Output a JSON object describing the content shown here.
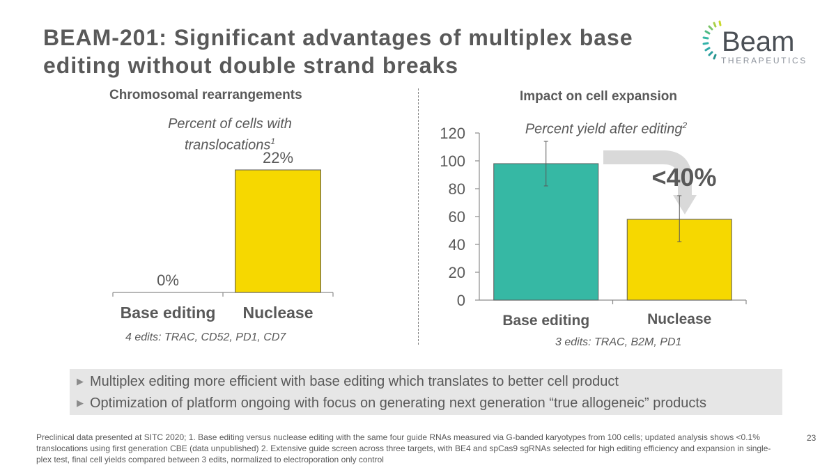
{
  "slide": {
    "title": "BEAM-201: Significant advantages of multiplex base editing without double strand breaks",
    "page_number": "23"
  },
  "logo": {
    "name": "Beam",
    "subtitle": "THERAPEUTICS"
  },
  "left_panel": {
    "section_title": "Chromosomal rearrangements",
    "subtitle": "Percent of cells with translocations",
    "subtitle_sup": "1",
    "edits_note": "4 edits: TRAC, CD52, PD1, CD7"
  },
  "right_panel": {
    "section_title": "Impact on cell expansion",
    "subtitle": "Percent yield after editing",
    "subtitle_sup": "2",
    "callout": "<40%",
    "edits_note": "3 edits: TRAC, B2M, PD1"
  },
  "chart_data": [
    {
      "type": "bar",
      "title": "Chromosomal rearrangements",
      "subtitle": "Percent of cells with translocations",
      "categories": [
        "Base editing",
        "Nuclease"
      ],
      "values": [
        0,
        22
      ],
      "data_labels": [
        "0%",
        "22%"
      ],
      "ylim": [
        0,
        30
      ],
      "colors": [
        "#FFFFFF",
        "#F6D800"
      ],
      "axes_visible": false
    },
    {
      "type": "bar",
      "title": "Impact on cell expansion",
      "subtitle": "Percent yield after editing",
      "categories": [
        "Base editing",
        "Nuclease"
      ],
      "values": [
        98,
        58
      ],
      "error_bars": [
        [
          82,
          114
        ],
        [
          42,
          75
        ]
      ],
      "ylim": [
        0,
        120
      ],
      "yticks": [
        0,
        20,
        40,
        60,
        80,
        100,
        120
      ],
      "colors": [
        "#36B8A4",
        "#F6D800"
      ],
      "annotation": "<40%"
    }
  ],
  "bullets": [
    "Multiplex editing more efficient with base editing which translates to better cell product",
    "Optimization of platform ongoing with focus on generating next generation “true allogeneic” products"
  ],
  "footnote": "Preclinical data presented at SITC 2020; 1. Base editing versus nuclease editing with the same four guide RNAs measured via G-banded karyotypes from 100 cells;  updated analysis shows <0.1% translocations using first generation CBE (data unpublished) 2. Extensive guide screen across three targets, with BE4 and spCas9 sgRNAs selected for high editing efficiency and expansion in single-plex test, final cell yields compared between 3 edits, normalized to electroporation only control",
  "colors": {
    "text": "#595959",
    "teal": "#36B8A4",
    "yellow": "#F6D800",
    "callout_bg": "#E6E6E6"
  }
}
